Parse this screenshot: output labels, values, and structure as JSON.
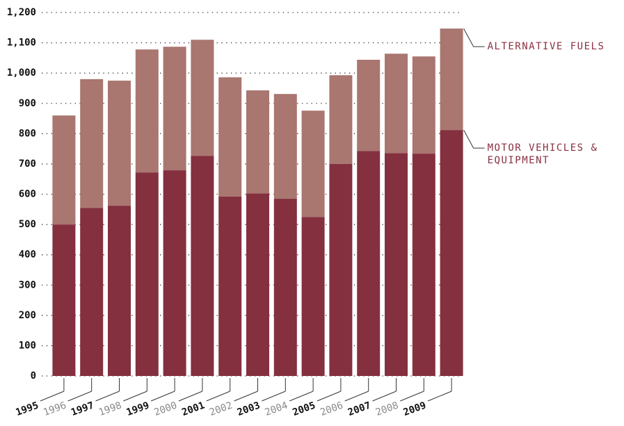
{
  "chart_data": {
    "type": "stacked_bar",
    "categories": [
      "1995",
      "1996",
      "1997",
      "1998",
      "1999",
      "2000",
      "2001",
      "2002",
      "2003",
      "2004",
      "2005",
      "2006",
      "2007",
      "2008",
      "2009"
    ],
    "series": [
      {
        "name": "MOTOR VEHICLES & EQUIPMENT",
        "color": "#84303f",
        "values": [
          500,
          555,
          562,
          672,
          679,
          727,
          592,
          603,
          585,
          525,
          700,
          743,
          736,
          734,
          812
        ]
      },
      {
        "name": "ALTERNATIVE FUELS",
        "color": "#a97670",
        "values": [
          360,
          425,
          413,
          406,
          408,
          383,
          394,
          340,
          346,
          351,
          293,
          301,
          328,
          321,
          335
        ]
      }
    ],
    "ylim": [
      0,
      1200
    ],
    "yticks": [
      0,
      100,
      200,
      300,
      400,
      500,
      600,
      700,
      800,
      900,
      {
        "value": 1000,
        "label": "1,000"
      },
      {
        "value": 1100,
        "label": "1,100"
      },
      {
        "value": 1200,
        "label": "1,200"
      }
    ],
    "grid": true
  }
}
